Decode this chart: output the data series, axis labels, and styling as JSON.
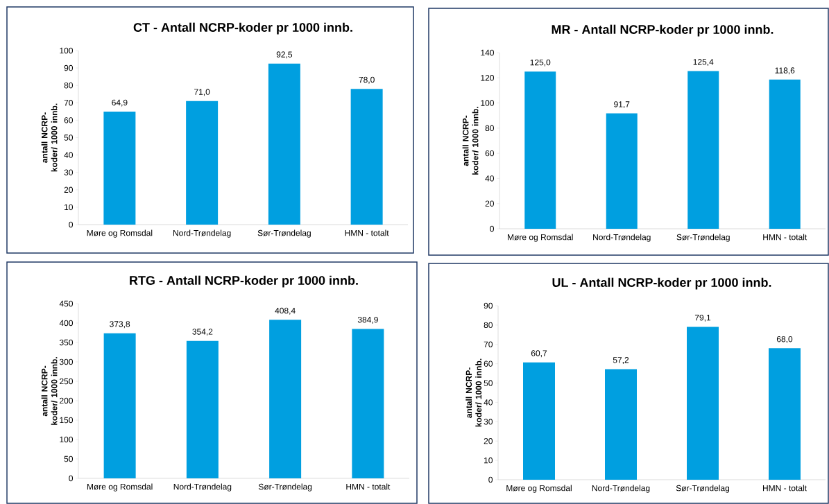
{
  "chart_data": [
    {
      "type": "bar",
      "title": "CT - Antall NCRP-koder pr 1000 innb.",
      "ylabel": "antall NCRP-koder/ 1000 innb.",
      "categories": [
        "Møre og Romsdal",
        "Nord-Trøndelag",
        "Sør-Trøndelag",
        "HMN - totalt"
      ],
      "values": [
        64.9,
        71.0,
        92.5,
        78.0
      ],
      "value_labels": [
        "64,9",
        "71,0",
        "92,5",
        "78,0"
      ],
      "color": "#009fe0",
      "ylim": [
        0,
        100
      ],
      "yticks": [
        0,
        10,
        20,
        30,
        40,
        50,
        60,
        70,
        80,
        90,
        100
      ]
    },
    {
      "type": "bar",
      "title": "MR - Antall NCRP-koder pr 1000 innb.",
      "ylabel": "antall NCRP-koder/ 1000 innb.",
      "categories": [
        "Møre og Romsdal",
        "Nord-Trøndelag",
        "Sør-Trøndelag",
        "HMN - totalt"
      ],
      "values": [
        125.0,
        91.7,
        125.4,
        118.6
      ],
      "value_labels": [
        "125,0",
        "91,7",
        "125,4",
        "118,6"
      ],
      "color": "#009fe0",
      "ylim": [
        0,
        140
      ],
      "yticks": [
        0,
        20,
        40,
        60,
        80,
        100,
        120,
        140
      ]
    },
    {
      "type": "bar",
      "title": "RTG - Antall NCRP-koder pr 1000 innb.",
      "ylabel": "antall NCRP-koder/ 1000 innb.",
      "categories": [
        "Møre og Romsdal",
        "Nord-Trøndelag",
        "Sør-Trøndelag",
        "HMN - totalt"
      ],
      "values": [
        373.8,
        354.2,
        408.4,
        384.9
      ],
      "value_labels": [
        "373,8",
        "354,2",
        "408,4",
        "384,9"
      ],
      "color": "#009fe0",
      "ylim": [
        0,
        450
      ],
      "yticks": [
        0,
        50,
        100,
        150,
        200,
        250,
        300,
        350,
        400,
        450
      ]
    },
    {
      "type": "bar",
      "title": "UL - Antall NCRP-koder pr 1000 innb.",
      "ylabel": "antall NCRP-koder/ 1000 innb.",
      "categories": [
        "Møre og Romsdal",
        "Nord-Trøndelag",
        "Sør-Trøndelag",
        "HMN - totalt"
      ],
      "values": [
        60.7,
        57.2,
        79.1,
        68.0
      ],
      "value_labels": [
        "60,7",
        "57,2",
        "79,1",
        "68,0"
      ],
      "color": "#009fe0",
      "ylim": [
        0,
        90
      ],
      "yticks": [
        0,
        10,
        20,
        30,
        40,
        50,
        60,
        70,
        80,
        90
      ]
    }
  ]
}
